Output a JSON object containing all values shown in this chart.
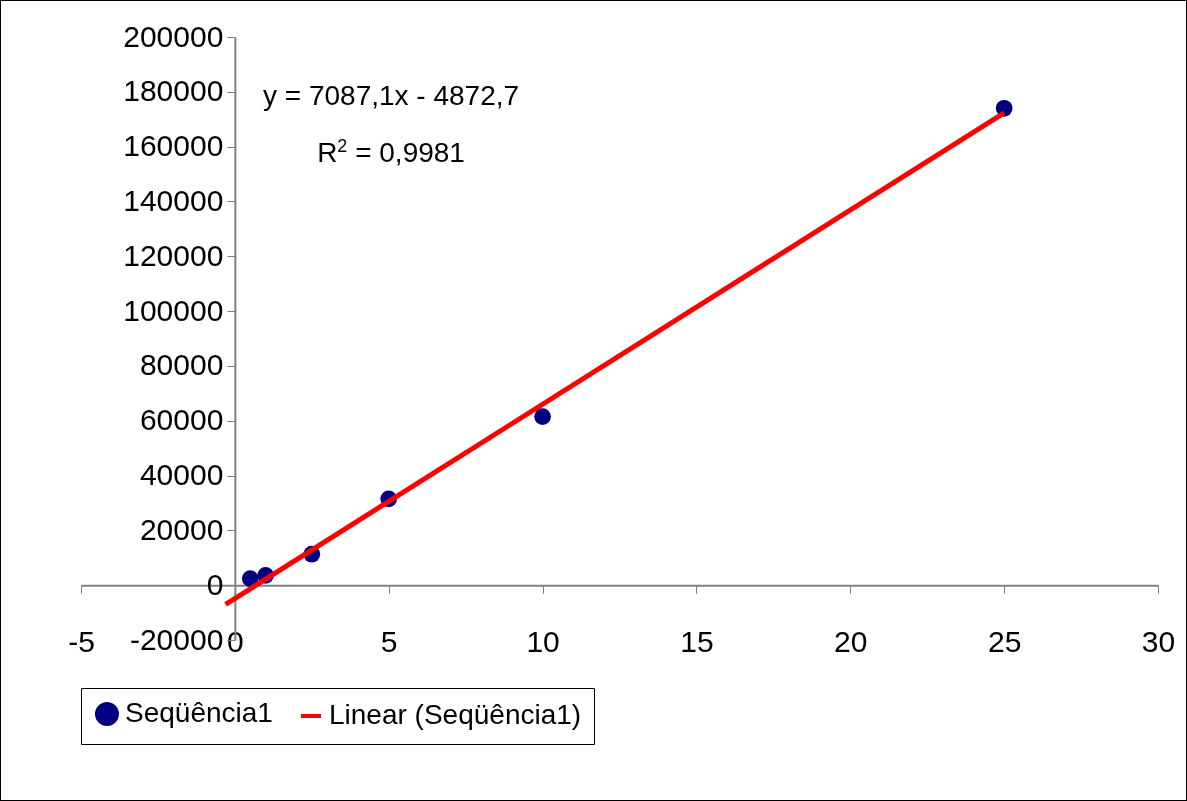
{
  "chart_data": {
    "type": "scatter",
    "annotations": [
      "y = 7087,1x - 4872,7",
      "R$^{2}$ = 0,9981"
    ],
    "xlim": [
      -5,
      30
    ],
    "xticks": [
      -5,
      0,
      5,
      10,
      15,
      20,
      25,
      30
    ],
    "ylim": [
      -20000,
      200000
    ],
    "yticks": [
      -20000,
      0,
      20000,
      40000,
      60000,
      80000,
      100000,
      120000,
      140000,
      160000,
      180000,
      200000
    ],
    "grid": false,
    "legend": "bottom",
    "series": [
      {
        "name": "Seqüência1",
        "marker": "circle",
        "color": "#000080",
        "x": [
          0.5,
          1,
          2.5,
          5,
          10,
          25
        ],
        "values": [
          2400,
          3600,
          11300,
          31500,
          61500,
          174000
        ]
      },
      {
        "name": "Linear (Seqüência1)",
        "type": "line",
        "color": "#ff0000",
        "line_style": "solid",
        "x": [
          -0.3,
          25
        ],
        "values": [
          -7000,
          172300
        ]
      }
    ]
  }
}
